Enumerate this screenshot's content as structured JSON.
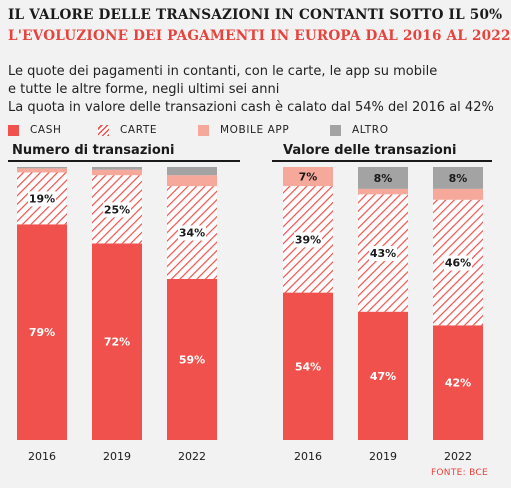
{
  "header": {
    "title": "IL VALORE DELLE TRANSAZIONI IN CONTANTI SOTTO IL 50%",
    "subtitle": "L'EVOLUZIONE DEI PAGAMENTI IN EUROPA DAL 2016 AL 2022",
    "description_lines": [
      "Le quote dei pagamenti in contanti, con le carte, le app su mobile",
      "e tutte le altre forme, negli ultimi sei anni",
      "La quota in valore delle transazioni cash è calato dal 54% del 2016 al 42%"
    ]
  },
  "legend": [
    {
      "label": "CASH",
      "color": "#f0514c",
      "pattern": "solid"
    },
    {
      "label": "CARTE",
      "color": "#f0514c",
      "pattern": "hatch"
    },
    {
      "label": "MOBILE APP",
      "color": "#f6a99a",
      "pattern": "solid"
    },
    {
      "label": "ALTRO",
      "color": "#a3a3a3",
      "pattern": "solid"
    }
  ],
  "source": "FONTE: BCE",
  "chart_data": [
    {
      "type": "bar",
      "stacked": true,
      "title": "Numero di transazioni",
      "categories": [
        "2016",
        "2019",
        "2022"
      ],
      "ylim": [
        0,
        100
      ],
      "series": [
        {
          "name": "CASH",
          "values": [
            79,
            72,
            59
          ],
          "labels": [
            "79%",
            "72%",
            "59%"
          ]
        },
        {
          "name": "CARTE",
          "values": [
            19,
            25,
            34
          ],
          "labels": [
            "19%",
            "25%",
            "34%"
          ]
        },
        {
          "name": "MOBILE APP",
          "values": [
            1.5,
            2,
            4
          ],
          "labels": [
            "",
            "",
            ""
          ]
        },
        {
          "name": "ALTRO",
          "values": [
            0.5,
            1,
            3
          ],
          "labels": [
            "",
            "",
            ""
          ]
        }
      ]
    },
    {
      "type": "bar",
      "stacked": true,
      "title": "Valore delle transazioni",
      "categories": [
        "2016",
        "2019",
        "2022"
      ],
      "ylim": [
        0,
        100
      ],
      "series": [
        {
          "name": "CASH",
          "values": [
            54,
            47,
            42
          ],
          "labels": [
            "54%",
            "47%",
            "42%"
          ]
        },
        {
          "name": "CARTE",
          "values": [
            39,
            43,
            46
          ],
          "labels": [
            "39%",
            "43%",
            "46%"
          ]
        },
        {
          "name": "MOBILE APP",
          "values": [
            7,
            2,
            4
          ],
          "labels": [
            "7%",
            "",
            ""
          ]
        },
        {
          "name": "ALTRO",
          "values": [
            0,
            8,
            8
          ],
          "labels": [
            "",
            "8%",
            "8%"
          ]
        }
      ]
    }
  ]
}
